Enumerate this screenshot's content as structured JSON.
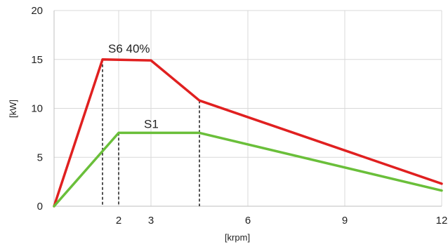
{
  "chart_data": {
    "type": "line",
    "xlabel": "[krpm]",
    "ylabel": "[kW]",
    "xlim": [
      0,
      12
    ],
    "ylim": [
      0,
      20
    ],
    "x_ticks": [
      2,
      3,
      6,
      9,
      12
    ],
    "y_ticks": [
      0,
      5,
      10,
      15,
      20
    ],
    "grid": true,
    "series": [
      {
        "name": "S6 40%",
        "color": "#e02020",
        "x": [
          0,
          1.5,
          3.0,
          4.5,
          12
        ],
        "y": [
          0,
          15.0,
          14.9,
          10.8,
          2.3
        ]
      },
      {
        "name": "S1",
        "color": "#6abf3a",
        "x": [
          0,
          2.0,
          3.0,
          4.5,
          12
        ],
        "y": [
          0,
          7.5,
          7.5,
          7.5,
          1.6
        ]
      }
    ],
    "drop_lines": [
      {
        "x": 1.5,
        "y": 15.0
      },
      {
        "x": 2.0,
        "y": 7.5
      },
      {
        "x": 4.5,
        "y": 10.8
      }
    ]
  }
}
